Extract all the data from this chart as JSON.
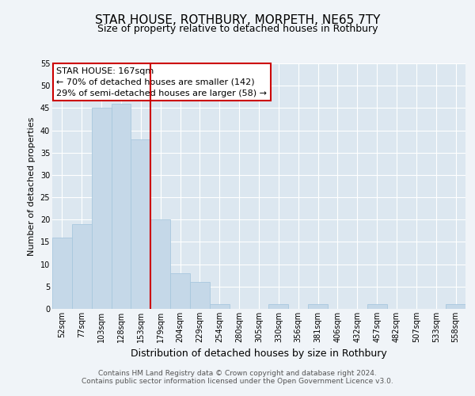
{
  "title": "STAR HOUSE, ROTHBURY, MORPETH, NE65 7TY",
  "subtitle": "Size of property relative to detached houses in Rothbury",
  "xlabel": "Distribution of detached houses by size in Rothbury",
  "ylabel": "Number of detached properties",
  "categories": [
    "52sqm",
    "77sqm",
    "103sqm",
    "128sqm",
    "153sqm",
    "179sqm",
    "204sqm",
    "229sqm",
    "254sqm",
    "280sqm",
    "305sqm",
    "330sqm",
    "356sqm",
    "381sqm",
    "406sqm",
    "432sqm",
    "457sqm",
    "482sqm",
    "507sqm",
    "533sqm",
    "558sqm"
  ],
  "values": [
    16,
    19,
    45,
    46,
    38,
    20,
    8,
    6,
    1,
    0,
    0,
    1,
    0,
    1,
    0,
    0,
    1,
    0,
    0,
    0,
    1
  ],
  "bar_color": "#c5d8e8",
  "bar_edge_color": "#a8c8de",
  "vline_x_index": 4.5,
  "vline_color": "#cc0000",
  "annotation_text": "STAR HOUSE: 167sqm\n← 70% of detached houses are smaller (142)\n29% of semi-detached houses are larger (58) →",
  "annotation_box_color": "#ffffff",
  "annotation_box_edge": "#cc0000",
  "ylim": [
    0,
    55
  ],
  "yticks": [
    0,
    5,
    10,
    15,
    20,
    25,
    30,
    35,
    40,
    45,
    50,
    55
  ],
  "fig_bg_color": "#f0f4f8",
  "axes_bg_color": "#dce7f0",
  "grid_color": "#ffffff",
  "footer1": "Contains HM Land Registry data © Crown copyright and database right 2024.",
  "footer2": "Contains public sector information licensed under the Open Government Licence v3.0.",
  "title_fontsize": 11,
  "subtitle_fontsize": 9,
  "xlabel_fontsize": 9,
  "ylabel_fontsize": 8,
  "tick_fontsize": 7,
  "annotation_fontsize": 8,
  "footer_fontsize": 6.5
}
